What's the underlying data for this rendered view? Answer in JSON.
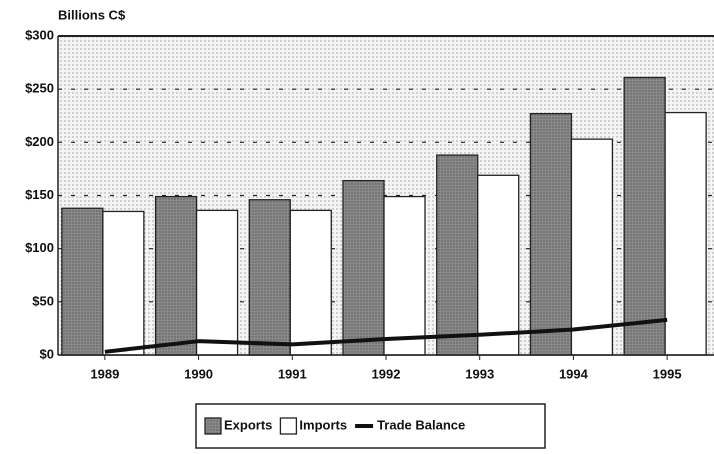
{
  "chart_data": {
    "type": "bar",
    "title": "Billions C$",
    "categories": [
      "1989",
      "1990",
      "1991",
      "1992",
      "1993",
      "1994",
      "1995"
    ],
    "series": [
      {
        "name": "Exports",
        "color": "#8a8a8a",
        "values": [
          138,
          149,
          146,
          164,
          188,
          227,
          261
        ]
      },
      {
        "name": "Imports",
        "color": "#ffffff",
        "values": [
          135,
          136,
          136,
          149,
          169,
          203,
          228
        ]
      },
      {
        "name": "Trade Balance",
        "color": "#111111",
        "type": "line",
        "values": [
          3,
          13,
          10,
          15,
          19,
          24,
          33
        ]
      }
    ],
    "ylim": [
      0,
      300
    ],
    "yticks": [
      {
        "value": 0,
        "label": "$0"
      },
      {
        "value": 50,
        "label": "$50"
      },
      {
        "value": 100,
        "label": "$100"
      },
      {
        "value": 150,
        "label": "$150"
      },
      {
        "value": 200,
        "label": "$200"
      },
      {
        "value": 250,
        "label": "$250"
      },
      {
        "value": 300,
        "label": "$300"
      }
    ],
    "grid": true,
    "legend": "bottom"
  }
}
